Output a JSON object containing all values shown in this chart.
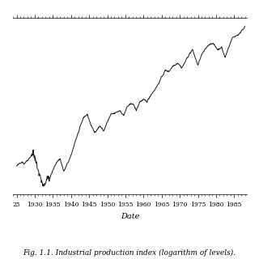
{
  "title": "",
  "xlabel": "Date",
  "ylabel": "",
  "caption": "Fig. 1.1. Industrial production index (logarithm of levels).",
  "xticks": [
    1925,
    1930,
    1935,
    1940,
    1945,
    1950,
    1955,
    1960,
    1965,
    1970,
    1975,
    1980,
    1985
  ],
  "xtick_labels": [
    "25",
    "1930",
    "1935",
    "1940",
    "1945",
    "1950",
    "1955",
    "1960",
    "1965",
    "1970",
    "1975",
    "1980",
    "1985"
  ],
  "line_color": "#1a1a1a",
  "background_color": "#ffffff",
  "line_width": 0.7,
  "fig_width": 3.2,
  "fig_height": 3.2,
  "dpi": 100,
  "keypoints_x": [
    1925.0,
    1926.5,
    1927.0,
    1928.0,
    1929.5,
    1930.5,
    1931.0,
    1932.5,
    1933.5,
    1934.0,
    1935.0,
    1936.0,
    1937.0,
    1938.0,
    1939.0,
    1940.0,
    1941.0,
    1942.5,
    1943.5,
    1944.5,
    1945.5,
    1946.5,
    1947.0,
    1948.0,
    1949.0,
    1950.0,
    1951.0,
    1952.0,
    1953.5,
    1954.5,
    1955.5,
    1957.0,
    1958.0,
    1959.0,
    1960.0,
    1961.0,
    1962.0,
    1963.0,
    1964.0,
    1965.0,
    1966.0,
    1967.0,
    1968.0,
    1969.5,
    1970.5,
    1971.0,
    1972.5,
    1973.5,
    1975.0,
    1976.0,
    1977.0,
    1978.0,
    1979.0,
    1980.5,
    1981.5,
    1982.5,
    1983.5,
    1984.5,
    1985.5,
    1986.5,
    1987.0,
    1988.0
  ],
  "keypoints_y": [
    3.8,
    3.9,
    3.85,
    3.92,
    4.05,
    3.85,
    3.7,
    3.4,
    3.6,
    3.55,
    3.72,
    3.88,
    3.95,
    3.7,
    3.85,
    4.0,
    4.25,
    4.55,
    4.75,
    4.8,
    4.6,
    4.45,
    4.5,
    4.58,
    4.48,
    4.65,
    4.8,
    4.82,
    4.88,
    4.78,
    4.95,
    5.02,
    4.88,
    5.05,
    5.08,
    5.05,
    5.18,
    5.27,
    5.38,
    5.52,
    5.65,
    5.63,
    5.73,
    5.8,
    5.7,
    5.75,
    5.95,
    6.05,
    5.75,
    5.95,
    6.05,
    6.15,
    6.18,
    6.05,
    6.1,
    5.9,
    6.1,
    6.28,
    6.32,
    6.35,
    6.42,
    6.5
  ]
}
